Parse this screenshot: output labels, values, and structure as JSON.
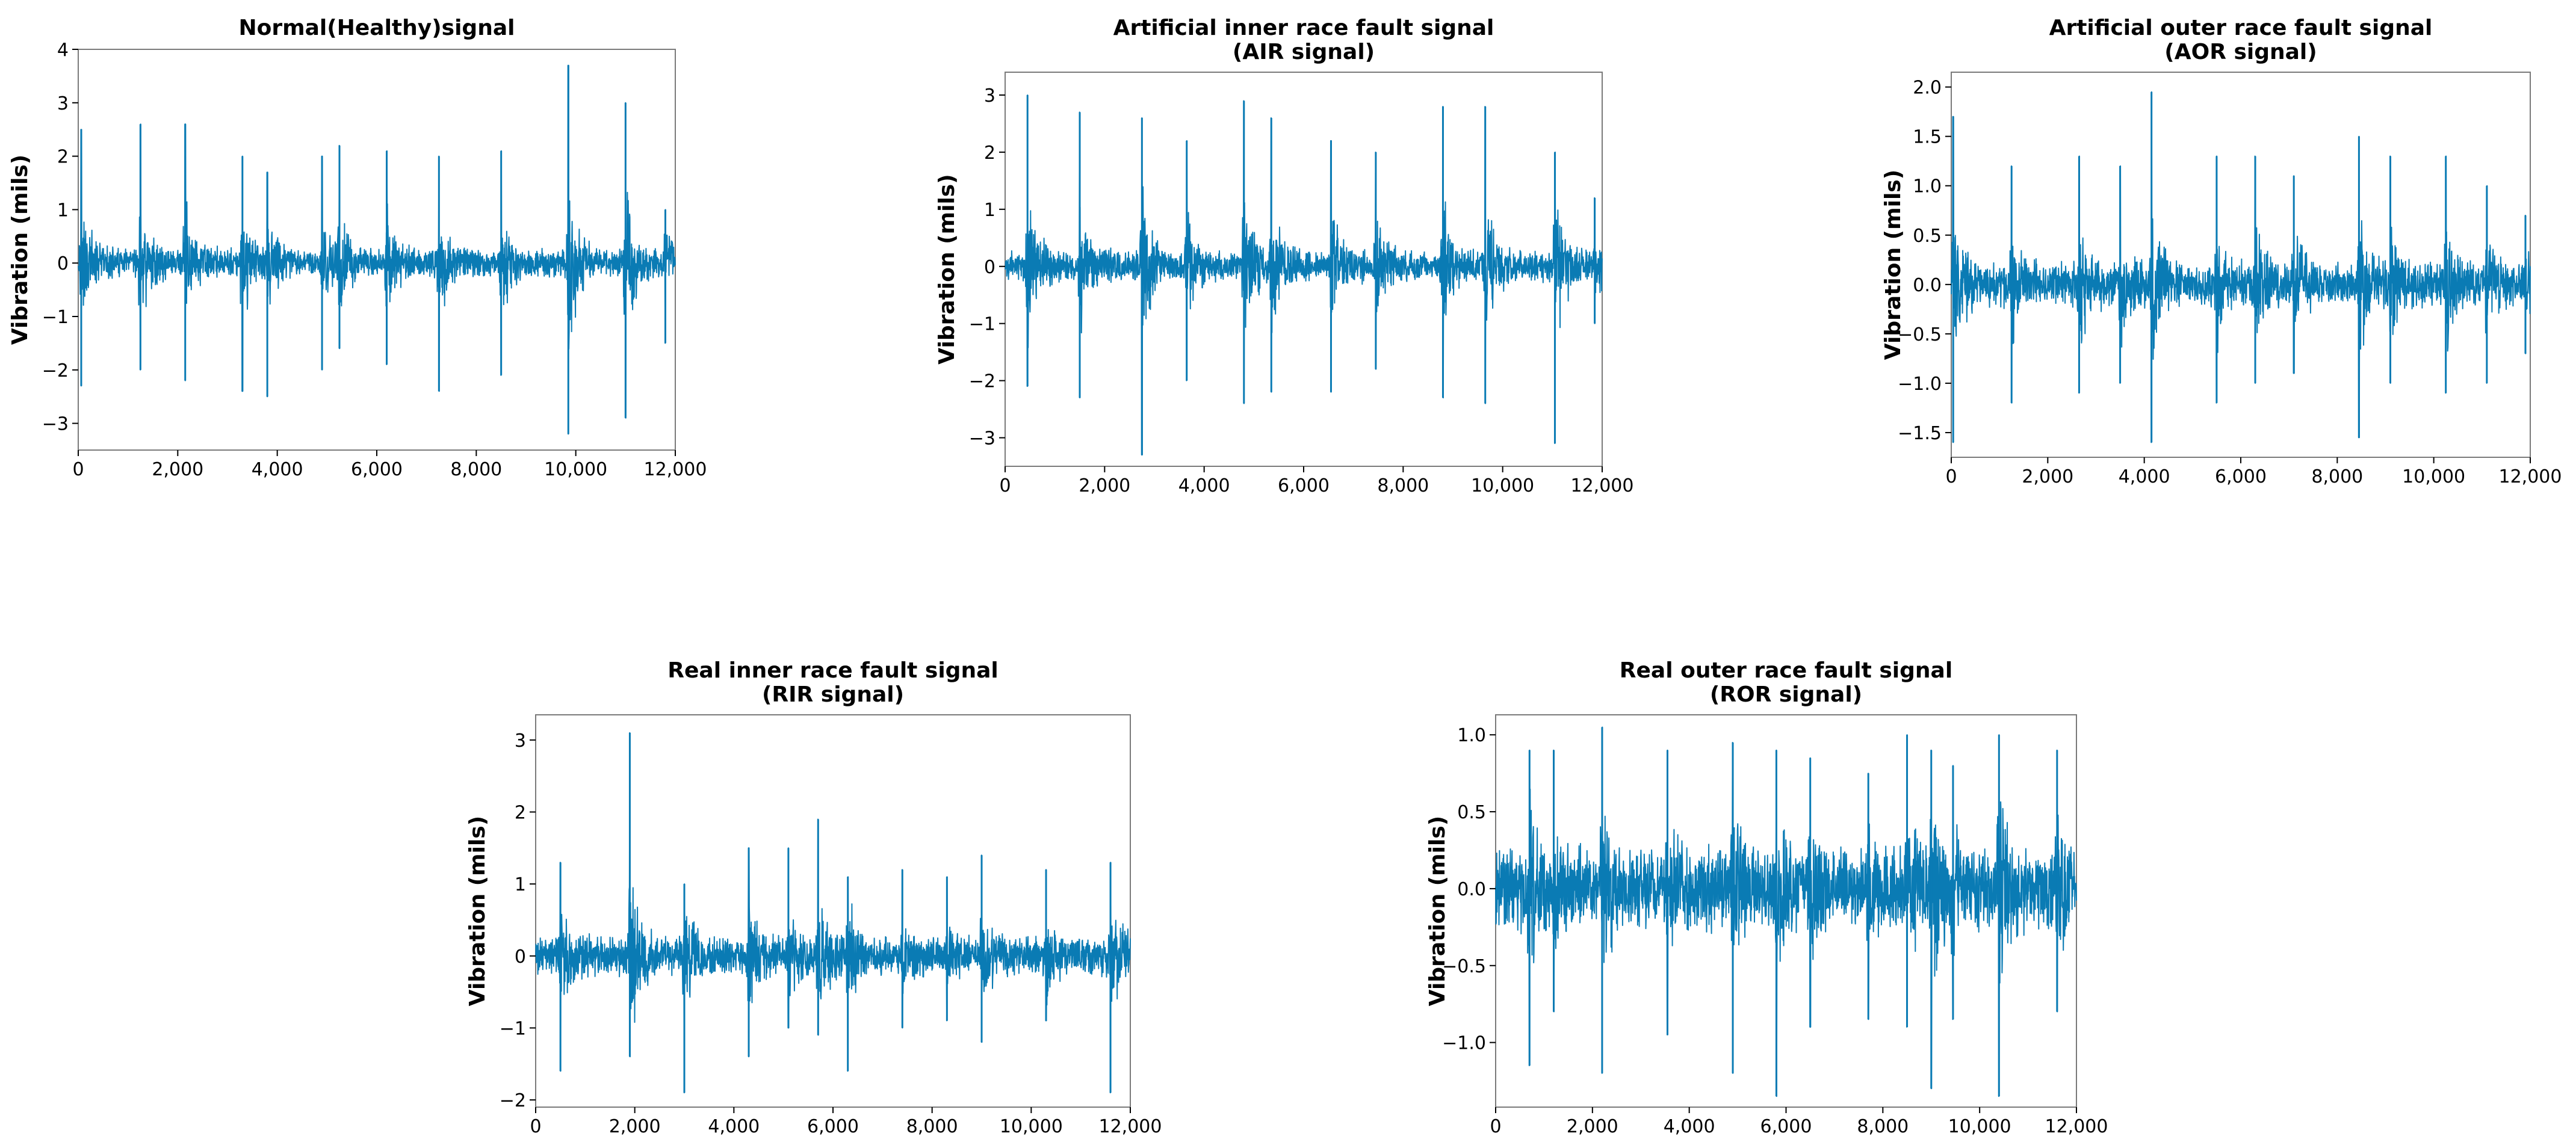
{
  "signal_color": "#0a7bb4",
  "chart_data": [
    {
      "type": "line",
      "title_lines": [
        "Normal(Healthy)signal"
      ],
      "ylabel": "Vibration (mils)",
      "xlabel": "",
      "xlim": [
        0,
        12000
      ],
      "ylim": [
        -3.5,
        4.0
      ],
      "xticks": [
        0,
        2000,
        4000,
        6000,
        8000,
        10000,
        12000
      ],
      "xtick_labels": [
        "0",
        "2,000",
        "4,000",
        "6,000",
        "8,000",
        "10,000",
        "12,000"
      ],
      "yticks": [
        -3,
        -2,
        -1,
        0,
        1,
        2,
        3,
        4
      ],
      "ytick_labels": [
        "−3",
        "−2",
        "−1",
        "0",
        "1",
        "2",
        "3",
        "4"
      ],
      "grid": false,
      "noise_amplitude": 0.3,
      "impulses": [
        {
          "x": 60,
          "up": 2.5,
          "down": -2.3
        },
        {
          "x": 1250,
          "up": 2.6,
          "down": -2.0
        },
        {
          "x": 2150,
          "up": 2.6,
          "down": -2.2
        },
        {
          "x": 3300,
          "up": 2.0,
          "down": -2.4
        },
        {
          "x": 3800,
          "up": 1.7,
          "down": -2.5
        },
        {
          "x": 4900,
          "up": 2.0,
          "down": -2.0
        },
        {
          "x": 5250,
          "up": 2.2,
          "down": -1.6
        },
        {
          "x": 6200,
          "up": 2.1,
          "down": -1.9
        },
        {
          "x": 7250,
          "up": 2.0,
          "down": -2.4
        },
        {
          "x": 8500,
          "up": 2.1,
          "down": -2.1
        },
        {
          "x": 9850,
          "up": 3.7,
          "down": -3.2
        },
        {
          "x": 11000,
          "up": 3.0,
          "down": -2.9
        },
        {
          "x": 11800,
          "up": 1.0,
          "down": -1.5
        }
      ]
    },
    {
      "type": "line",
      "title_lines": [
        "Artificial inner race fault signal",
        "(AIR signal)"
      ],
      "ylabel": "Vibration (mils)",
      "xlabel": "",
      "xlim": [
        0,
        12000
      ],
      "ylim": [
        -3.5,
        3.4
      ],
      "xticks": [
        0,
        2000,
        4000,
        6000,
        8000,
        10000,
        12000
      ],
      "xtick_labels": [
        "0",
        "2,000",
        "4,000",
        "6,000",
        "8,000",
        "10,000",
        "12,000"
      ],
      "yticks": [
        -3,
        -2,
        -1,
        0,
        1,
        2,
        3
      ],
      "ytick_labels": [
        "−3",
        "−2",
        "−1",
        "0",
        "1",
        "2",
        "3"
      ],
      "grid": false,
      "noise_amplitude": 0.3,
      "impulses": [
        {
          "x": 450,
          "up": 3.0,
          "down": -2.1
        },
        {
          "x": 1500,
          "up": 2.7,
          "down": -2.3
        },
        {
          "x": 2750,
          "up": 2.6,
          "down": -3.3
        },
        {
          "x": 3650,
          "up": 2.2,
          "down": -2.0
        },
        {
          "x": 4800,
          "up": 2.9,
          "down": -2.4
        },
        {
          "x": 5350,
          "up": 2.6,
          "down": -2.2
        },
        {
          "x": 6550,
          "up": 2.2,
          "down": -2.2
        },
        {
          "x": 7450,
          "up": 2.0,
          "down": -1.8
        },
        {
          "x": 8800,
          "up": 2.8,
          "down": -2.3
        },
        {
          "x": 9650,
          "up": 2.8,
          "down": -2.4
        },
        {
          "x": 11050,
          "up": 2.0,
          "down": -3.1
        },
        {
          "x": 11850,
          "up": 1.2,
          "down": -1.0
        }
      ]
    },
    {
      "type": "line",
      "title_lines": [
        "Artificial outer race fault signal",
        "(AOR signal)"
      ],
      "ylabel": "Vibration (mils)",
      "xlabel": "",
      "xlim": [
        0,
        12000
      ],
      "ylim": [
        -1.75,
        2.15
      ],
      "xticks": [
        0,
        2000,
        4000,
        6000,
        8000,
        10000,
        12000
      ],
      "xtick_labels": [
        "0",
        "2,000",
        "4,000",
        "6,000",
        "8,000",
        "10,000",
        "12,000"
      ],
      "yticks": [
        -1.5,
        -1.0,
        -0.5,
        0.0,
        0.5,
        1.0,
        1.5,
        2.0
      ],
      "ytick_labels": [
        "−1.5",
        "−1.0",
        "−0.5",
        "0.0",
        "0.5",
        "1.0",
        "1.5",
        "2.0"
      ],
      "grid": false,
      "noise_amplitude": 0.25,
      "impulses": [
        {
          "x": 40,
          "up": 1.7,
          "down": -1.6
        },
        {
          "x": 1250,
          "up": 1.2,
          "down": -1.2
        },
        {
          "x": 2650,
          "up": 1.3,
          "down": -1.1
        },
        {
          "x": 3500,
          "up": 1.2,
          "down": -1.0
        },
        {
          "x": 4150,
          "up": 1.95,
          "down": -1.6
        },
        {
          "x": 5500,
          "up": 1.3,
          "down": -1.2
        },
        {
          "x": 6300,
          "up": 1.3,
          "down": -1.0
        },
        {
          "x": 7100,
          "up": 1.1,
          "down": -0.9
        },
        {
          "x": 8450,
          "up": 1.5,
          "down": -1.55
        },
        {
          "x": 9100,
          "up": 1.3,
          "down": -1.0
        },
        {
          "x": 10250,
          "up": 1.3,
          "down": -1.1
        },
        {
          "x": 11100,
          "up": 1.0,
          "down": -1.0
        },
        {
          "x": 11900,
          "up": 0.7,
          "down": -0.7
        }
      ]
    },
    {
      "type": "line",
      "title_lines": [
        "Real inner race fault signal",
        "(RIR signal)"
      ],
      "ylabel": "Vibration (mils)",
      "xlabel": "",
      "xlim": [
        0,
        12000
      ],
      "ylim": [
        -2.1,
        3.35
      ],
      "xticks": [
        0,
        2000,
        4000,
        6000,
        8000,
        10000,
        12000
      ],
      "xtick_labels": [
        "0",
        "2,000",
        "4,000",
        "6,000",
        "8,000",
        "10,000",
        "12,000"
      ],
      "yticks": [
        -2,
        -1,
        0,
        1,
        2,
        3
      ],
      "ytick_labels": [
        "−2",
        "−1",
        "0",
        "1",
        "2",
        "3"
      ],
      "grid": false,
      "noise_amplitude": 0.3,
      "impulses": [
        {
          "x": 500,
          "up": 1.3,
          "down": -1.6
        },
        {
          "x": 1900,
          "up": 3.1,
          "down": -1.4
        },
        {
          "x": 3000,
          "up": 1.0,
          "down": -1.9
        },
        {
          "x": 4300,
          "up": 1.5,
          "down": -1.4
        },
        {
          "x": 5100,
          "up": 1.5,
          "down": -1.0
        },
        {
          "x": 5700,
          "up": 1.9,
          "down": -1.1
        },
        {
          "x": 6300,
          "up": 1.1,
          "down": -1.6
        },
        {
          "x": 7400,
          "up": 1.2,
          "down": -1.0
        },
        {
          "x": 8300,
          "up": 1.1,
          "down": -0.9
        },
        {
          "x": 9000,
          "up": 1.4,
          "down": -1.2
        },
        {
          "x": 10300,
          "up": 1.2,
          "down": -0.9
        },
        {
          "x": 11600,
          "up": 1.3,
          "down": -1.9
        }
      ]
    },
    {
      "type": "line",
      "title_lines": [
        "Real outer race fault signal",
        "(ROR signal)"
      ],
      "ylabel": "Vibration (mils)",
      "xlabel": "",
      "xlim": [
        0,
        12000
      ],
      "ylim": [
        -1.42,
        1.13
      ],
      "xticks": [
        0,
        2000,
        4000,
        6000,
        8000,
        10000,
        12000
      ],
      "xtick_labels": [
        "0",
        "2,000",
        "4,000",
        "6,000",
        "8,000",
        "10,000",
        "12,000"
      ],
      "yticks": [
        -1.0,
        -0.5,
        0.0,
        0.5,
        1.0
      ],
      "ytick_labels": [
        "−1.0",
        "−0.5",
        "0.0",
        "0.5",
        "1.0"
      ],
      "grid": false,
      "noise_amplitude": 0.3,
      "impulses": [
        {
          "x": 700,
          "up": 0.9,
          "down": -1.15
        },
        {
          "x": 1200,
          "up": 0.9,
          "down": -0.8
        },
        {
          "x": 2200,
          "up": 1.05,
          "down": -1.2
        },
        {
          "x": 3550,
          "up": 0.9,
          "down": -0.95
        },
        {
          "x": 4900,
          "up": 0.95,
          "down": -1.2
        },
        {
          "x": 5800,
          "up": 0.9,
          "down": -1.35
        },
        {
          "x": 6500,
          "up": 0.85,
          "down": -0.9
        },
        {
          "x": 7700,
          "up": 0.75,
          "down": -0.85
        },
        {
          "x": 8500,
          "up": 1.0,
          "down": -0.9
        },
        {
          "x": 9000,
          "up": 0.9,
          "down": -1.3
        },
        {
          "x": 9450,
          "up": 0.8,
          "down": -0.85
        },
        {
          "x": 10400,
          "up": 1.0,
          "down": -1.35
        },
        {
          "x": 11600,
          "up": 0.9,
          "down": -0.8
        }
      ]
    }
  ]
}
